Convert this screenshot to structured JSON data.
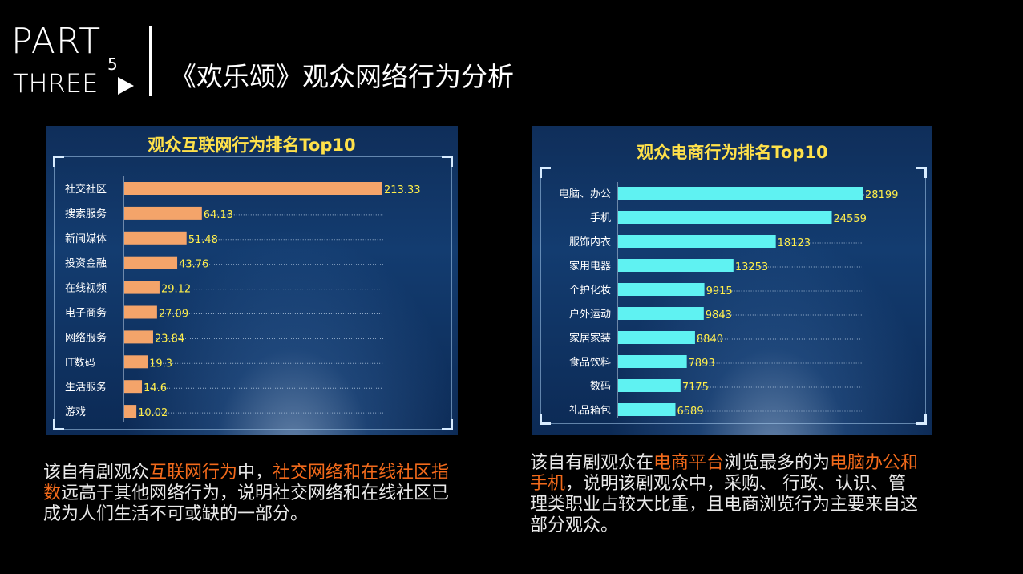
{
  "header": {
    "part": "PART",
    "three": "THREE",
    "number": "5",
    "title": "《欢乐颂》观众网络行为分析"
  },
  "colors": {
    "left_bar": "#f4a46a",
    "right_bar": "#5ff2f2",
    "value_label": "#ffee4a",
    "highlight": "#f26a1b",
    "title_yellow": "#ffe14a"
  },
  "chart_data": [
    {
      "type": "bar",
      "orientation": "horizontal",
      "title": "观众互联网行为排名Top10",
      "categories": [
        "社交社区",
        "搜索服务",
        "新闻媒体",
        "投资金融",
        "在线视频",
        "电子商务",
        "网络服务",
        "IT数码",
        "生活服务",
        "游戏"
      ],
      "values": [
        213.33,
        64.13,
        51.48,
        43.76,
        29.12,
        27.09,
        23.84,
        19.3,
        14.6,
        10.02
      ],
      "value_labels": [
        "213.33",
        "64.13",
        "51.48",
        "43.76",
        "29.12",
        "27.09",
        "23.84",
        "19.3",
        "14.6",
        "10.02"
      ],
      "xlim": [
        0,
        213.33
      ]
    },
    {
      "type": "bar",
      "orientation": "horizontal",
      "title": "观众电商行为排名Top10",
      "categories": [
        "电脑、办公",
        "手机",
        "服饰内衣",
        "家用电器",
        "个护化妆",
        "户外运动",
        "家居家装",
        "食品饮料",
        "数码",
        "礼品箱包"
      ],
      "values": [
        28199,
        24559,
        18123,
        13253,
        9915,
        9843,
        8840,
        7893,
        7175,
        6589
      ],
      "value_labels": [
        "28199",
        "24559",
        "18123",
        "13253",
        "9915",
        "9843",
        "8840",
        "7893",
        "7175",
        "6589"
      ],
      "xlim": [
        0,
        28199
      ]
    }
  ],
  "descriptions": {
    "left": [
      {
        "text": "该自有剧观众",
        "hl": false
      },
      {
        "text": "互联网行为",
        "hl": true
      },
      {
        "text": "中，",
        "hl": false
      },
      {
        "text": "社交网络和在线社区指数",
        "hl": true
      },
      {
        "text": "远高于其他网络行为，说明社交网络和在线社区已成为人们生活不可或缺的一部分。",
        "hl": false
      }
    ],
    "right": [
      {
        "text": "该自有剧观众在",
        "hl": false
      },
      {
        "text": "电商平台",
        "hl": true
      },
      {
        "text": "浏览最多的为",
        "hl": false
      },
      {
        "text": "电脑办公和手机",
        "hl": true
      },
      {
        "text": "，说明该剧观众中，采购、 行政、认识、管理类职业占较大比重，且电商浏览行为主要来自这部分观众。",
        "hl": false
      }
    ]
  }
}
